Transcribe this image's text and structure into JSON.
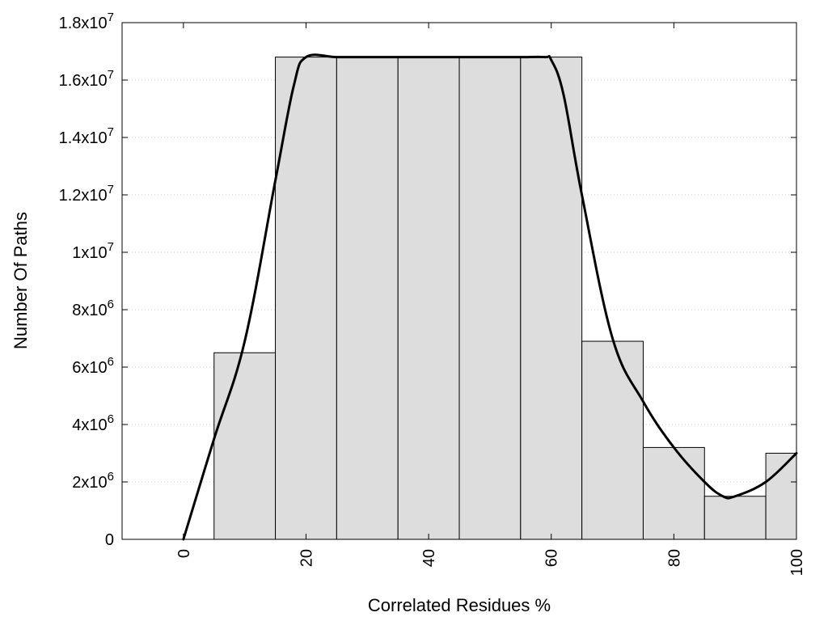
{
  "chart_data": {
    "type": "bar",
    "title": "",
    "xlabel": "Correlated Residues %",
    "ylabel": "Number Of Paths",
    "xlim": [
      -10,
      100
    ],
    "ylim": [
      0,
      18000000
    ],
    "grid": true,
    "legend": "none",
    "bin_width": 10,
    "categories": [
      0,
      10,
      20,
      30,
      40,
      50,
      60,
      70,
      80,
      90,
      100
    ],
    "values": [
      0,
      6500000,
      16800000,
      16800000,
      16800000,
      16800000,
      16800000,
      6900000,
      3200000,
      1500000,
      3000000
    ],
    "x_ticks": [
      0,
      20,
      40,
      60,
      80,
      100
    ],
    "x_tick_labels": [
      "0",
      "20",
      "40",
      "60",
      "80",
      "100"
    ],
    "y_ticks": [
      0,
      2000000,
      4000000,
      6000000,
      8000000,
      10000000,
      12000000,
      14000000,
      16000000,
      18000000
    ],
    "y_tick_labels": [
      {
        "base": "0",
        "exp": ""
      },
      {
        "base": "2x10",
        "exp": "6"
      },
      {
        "base": "4x10",
        "exp": "6"
      },
      {
        "base": "6x10",
        "exp": "6"
      },
      {
        "base": "8x10",
        "exp": "6"
      },
      {
        "base": "1x10",
        "exp": "7"
      },
      {
        "base": "1.2x10",
        "exp": "7"
      },
      {
        "base": "1.4x10",
        "exp": "7"
      },
      {
        "base": "1.6x10",
        "exp": "7"
      },
      {
        "base": "1.8x10",
        "exp": "7"
      }
    ],
    "curve": {
      "x": [
        0,
        5,
        10,
        15,
        18,
        20,
        25,
        30,
        40,
        50,
        55,
        59,
        60,
        62,
        65,
        70,
        75,
        80,
        85,
        88,
        90,
        95,
        100
      ],
      "y": [
        0,
        3500000,
        6900000,
        12500000,
        15800000,
        16800000,
        16800000,
        16800000,
        16800000,
        16800000,
        16800000,
        16800000,
        16700000,
        15500000,
        12000000,
        7000000,
        4800000,
        3200000,
        2000000,
        1500000,
        1500000,
        2000000,
        3000000
      ]
    },
    "colors": {
      "bar_fill": "#dddddd",
      "bar_stroke": "#000000",
      "curve": "#000000",
      "grid": "#cccccc",
      "frame": "#000000"
    }
  }
}
